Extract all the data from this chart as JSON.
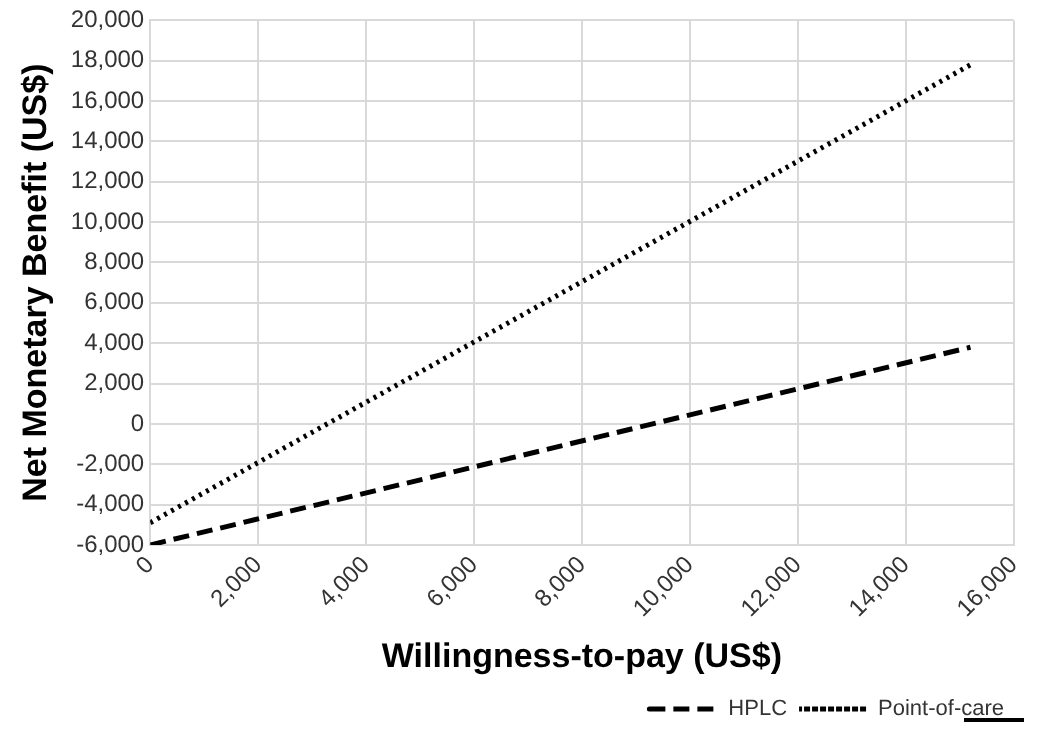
{
  "chart_data": {
    "type": "line",
    "xlabel": "Willingness-to-pay (US$)",
    "ylabel": "Net Monetary Benefit (US$)",
    "x": [
      0,
      15200
    ],
    "series": [
      {
        "name": "HPLC",
        "color": "#000000",
        "values": [
          -6000,
          3800
        ],
        "line_style": "dashed"
      },
      {
        "name": "Point-of-care",
        "color": "#000000",
        "values": [
          -4900,
          17800
        ],
        "line_style": "dotted"
      }
    ],
    "xlim": [
      0,
      16000
    ],
    "xticks": [
      {
        "value": 0,
        "label": "0"
      },
      {
        "value": 2000,
        "label": "2,000"
      },
      {
        "value": 4000,
        "label": "4,000"
      },
      {
        "value": 6000,
        "label": "6,000"
      },
      {
        "value": 8000,
        "label": "8,000"
      },
      {
        "value": 10000,
        "label": "10,000"
      },
      {
        "value": 12000,
        "label": "12,000"
      },
      {
        "value": 14000,
        "label": "14,000"
      },
      {
        "value": 16000,
        "label": "16,000"
      }
    ],
    "ylim": [
      -6000,
      20000
    ],
    "yticks": [
      {
        "value": -6000,
        "label": "-6,000"
      },
      {
        "value": -4000,
        "label": "-4,000"
      },
      {
        "value": -2000,
        "label": "-2,000"
      },
      {
        "value": 0,
        "label": "0"
      },
      {
        "value": 2000,
        "label": "2,000"
      },
      {
        "value": 4000,
        "label": "4,000"
      },
      {
        "value": 6000,
        "label": "6,000"
      },
      {
        "value": 8000,
        "label": "8,000"
      },
      {
        "value": 10000,
        "label": "10,000"
      },
      {
        "value": 12000,
        "label": "12,000"
      },
      {
        "value": 14000,
        "label": "14,000"
      },
      {
        "value": 16000,
        "label": "16,000"
      },
      {
        "value": 18000,
        "label": "18,000"
      },
      {
        "value": 20000,
        "label": "20,000"
      }
    ],
    "grid": true,
    "legend": "bottom right",
    "marker": "none"
  }
}
